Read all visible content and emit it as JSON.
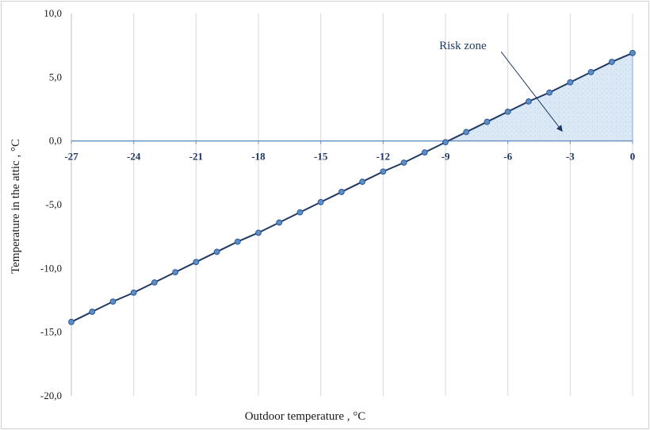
{
  "chart_data": {
    "type": "line",
    "xlabel": "Outdoor temperature  , °C",
    "ylabel": "Temperature  in the attic  , °C",
    "xlim": [
      -27,
      0
    ],
    "ylim": [
      -20,
      10
    ],
    "x_ticks": [
      "-27",
      "-24",
      "-21",
      "-18",
      "-15",
      "-12",
      "-9",
      "-6",
      "-3",
      "0"
    ],
    "x_tick_values": [
      -27,
      -24,
      -21,
      -18,
      -15,
      -12,
      -9,
      -6,
      -3,
      0
    ],
    "y_ticks": [
      "10,0",
      "5,0",
      "0,0",
      "-5,0",
      "-10,0",
      "-15,0",
      "-20,0"
    ],
    "y_tick_values": [
      10,
      5,
      0,
      -5,
      -10,
      -15,
      -20
    ],
    "grid": "vertical",
    "x_axis_position": "y=0",
    "series": [
      {
        "x": [
          -27,
          -26,
          -25,
          -24,
          -23,
          -22,
          -21,
          -20,
          -19,
          -18,
          -17,
          -16,
          -15,
          -14,
          -13,
          -12,
          -11,
          -10,
          -9,
          -8,
          -7,
          -6,
          -5,
          -4,
          -3,
          -2,
          -1,
          0
        ],
        "values": [
          -14.2,
          -13.4,
          -12.6,
          -11.9,
          -11.1,
          -10.3,
          -9.5,
          -8.7,
          -7.9,
          -7.2,
          -6.4,
          -5.6,
          -4.8,
          -4.0,
          -3.2,
          -2.4,
          -1.7,
          -0.9,
          -0.1,
          0.7,
          1.5,
          2.3,
          3.1,
          3.8,
          4.6,
          5.4,
          6.2,
          6.9
        ],
        "color": "#1f3864",
        "marker_color": "#5b8fc7"
      }
    ],
    "shaded_region": {
      "x_from": -9,
      "x_to": 0,
      "fill": "#dbe8f5"
    },
    "annotations": [
      {
        "text": "Risk zone",
        "x": -9.3,
        "y": 7.5,
        "arrow_to_x": -3.4,
        "arrow_to_y": 0.8
      }
    ],
    "colors": {
      "line": "#1f3864",
      "marker": "#5b8fc7",
      "grid": "#d9d9d9",
      "tick_x": "#1f3864"
    }
  }
}
